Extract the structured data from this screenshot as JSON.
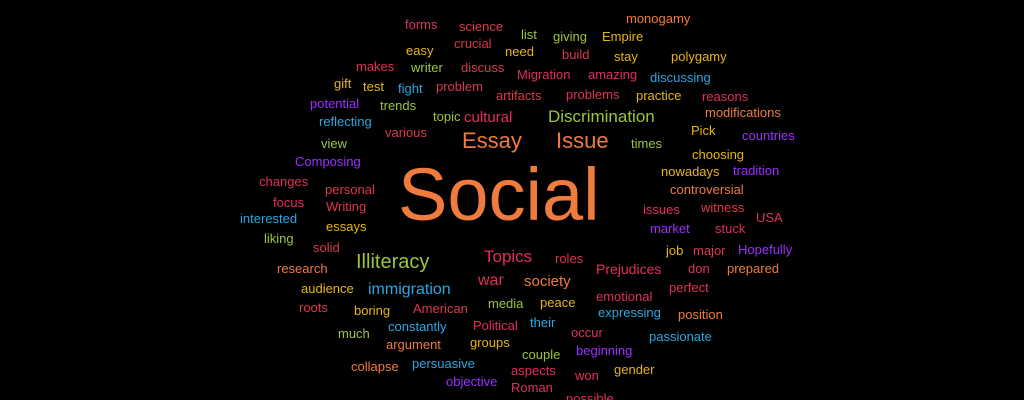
{
  "palette": {
    "orange": "#f07b3f",
    "red": "#d93a4a",
    "crimson": "#e0305a",
    "yellow_green": "#9bc53d",
    "purple": "#9b30ff",
    "blue": "#2aa7e0",
    "gold": "#e7b416"
  },
  "words": [
    {
      "text": "Social",
      "color": "#f07b3f",
      "size": 74
    },
    {
      "text": "Essay",
      "color": "#f07b3f",
      "size": 22
    },
    {
      "text": "Issue",
      "color": "#f07b3f",
      "size": 22
    },
    {
      "text": "Discrimination",
      "color": "#9bc53d",
      "size": 17
    },
    {
      "text": "cultural",
      "color": "#e0305a",
      "size": 15
    },
    {
      "text": "Illiteracy",
      "color": "#9bc53d",
      "size": 20
    },
    {
      "text": "Topics",
      "color": "#e0305a",
      "size": 17
    },
    {
      "text": "war",
      "color": "#e0305a",
      "size": 16
    },
    {
      "text": "society",
      "color": "#f07b3f",
      "size": 15
    },
    {
      "text": "immigration",
      "color": "#2aa7e0",
      "size": 16
    },
    {
      "text": "Prejudices",
      "color": "#e0305a",
      "size": 14
    },
    {
      "text": "forms",
      "color": "#e0305a",
      "size": 13
    },
    {
      "text": "science",
      "color": "#d93a4a",
      "size": 13
    },
    {
      "text": "crucial",
      "color": "#d93a4a",
      "size": 13
    },
    {
      "text": "list",
      "color": "#9bc53d",
      "size": 13
    },
    {
      "text": "giving",
      "color": "#9bc53d",
      "size": 13
    },
    {
      "text": "Empire",
      "color": "#e7b416",
      "size": 13
    },
    {
      "text": "monogamy",
      "color": "#f07b3f",
      "size": 13
    },
    {
      "text": "easy",
      "color": "#e7b416",
      "size": 13
    },
    {
      "text": "need",
      "color": "#e7b416",
      "size": 13
    },
    {
      "text": "build",
      "color": "#d93a4a",
      "size": 13
    },
    {
      "text": "stay",
      "color": "#e7b416",
      "size": 13
    },
    {
      "text": "polygamy",
      "color": "#e7b416",
      "size": 13
    },
    {
      "text": "makes",
      "color": "#e0305a",
      "size": 13
    },
    {
      "text": "writer",
      "color": "#9bc53d",
      "size": 13
    },
    {
      "text": "discuss",
      "color": "#d93a4a",
      "size": 13
    },
    {
      "text": "Migration",
      "color": "#e0305a",
      "size": 13
    },
    {
      "text": "amazing",
      "color": "#e0305a",
      "size": 13
    },
    {
      "text": "discussing",
      "color": "#2aa7e0",
      "size": 13
    },
    {
      "text": "gift",
      "color": "#e7b416",
      "size": 13
    },
    {
      "text": "test",
      "color": "#e7b416",
      "size": 13
    },
    {
      "text": "fight",
      "color": "#2aa7e0",
      "size": 13
    },
    {
      "text": "problem",
      "color": "#d93a4a",
      "size": 13
    },
    {
      "text": "artifacts",
      "color": "#d93a4a",
      "size": 13
    },
    {
      "text": "problems",
      "color": "#e0305a",
      "size": 13
    },
    {
      "text": "practice",
      "color": "#e7b416",
      "size": 13
    },
    {
      "text": "reasons",
      "color": "#e0305a",
      "size": 13
    },
    {
      "text": "potential",
      "color": "#9b30ff",
      "size": 13
    },
    {
      "text": "trends",
      "color": "#9bc53d",
      "size": 13
    },
    {
      "text": "modifications",
      "color": "#f07b3f",
      "size": 13
    },
    {
      "text": "reflecting",
      "color": "#2aa7e0",
      "size": 13
    },
    {
      "text": "topic",
      "color": "#9bc53d",
      "size": 13
    },
    {
      "text": "Pick",
      "color": "#e7b416",
      "size": 13
    },
    {
      "text": "countries",
      "color": "#9b30ff",
      "size": 13
    },
    {
      "text": "various",
      "color": "#d93a4a",
      "size": 13
    },
    {
      "text": "view",
      "color": "#9bc53d",
      "size": 13
    },
    {
      "text": "times",
      "color": "#9bc53d",
      "size": 13
    },
    {
      "text": "choosing",
      "color": "#e7b416",
      "size": 13
    },
    {
      "text": "Composing",
      "color": "#9b30ff",
      "size": 13
    },
    {
      "text": "nowadays",
      "color": "#e7b416",
      "size": 13
    },
    {
      "text": "tradition",
      "color": "#9b30ff",
      "size": 13
    },
    {
      "text": "changes",
      "color": "#e0305a",
      "size": 13
    },
    {
      "text": "personal",
      "color": "#d93a4a",
      "size": 13
    },
    {
      "text": "controversial",
      "color": "#f07b3f",
      "size": 13
    },
    {
      "text": "focus",
      "color": "#e0305a",
      "size": 13
    },
    {
      "text": "Writing",
      "color": "#d93a4a",
      "size": 13
    },
    {
      "text": "issues",
      "color": "#e0305a",
      "size": 13
    },
    {
      "text": "witness",
      "color": "#d93a4a",
      "size": 13
    },
    {
      "text": "interested",
      "color": "#2aa7e0",
      "size": 13
    },
    {
      "text": "USA",
      "color": "#e0305a",
      "size": 13
    },
    {
      "text": "essays",
      "color": "#e7b416",
      "size": 13
    },
    {
      "text": "market",
      "color": "#9b30ff",
      "size": 13
    },
    {
      "text": "stuck",
      "color": "#e0305a",
      "size": 13
    },
    {
      "text": "liking",
      "color": "#9bc53d",
      "size": 13
    },
    {
      "text": "solid",
      "color": "#d93a4a",
      "size": 13
    },
    {
      "text": "job",
      "color": "#e7b416",
      "size": 13
    },
    {
      "text": "major",
      "color": "#d93a4a",
      "size": 13
    },
    {
      "text": "Hopefully",
      "color": "#9b30ff",
      "size": 13
    },
    {
      "text": "roles",
      "color": "#d93a4a",
      "size": 13
    },
    {
      "text": "research",
      "color": "#f07b3f",
      "size": 13
    },
    {
      "text": "don",
      "color": "#e0305a",
      "size": 13
    },
    {
      "text": "prepared",
      "color": "#f07b3f",
      "size": 13
    },
    {
      "text": "audience",
      "color": "#e7b416",
      "size": 13
    },
    {
      "text": "perfect",
      "color": "#e0305a",
      "size": 13
    },
    {
      "text": "roots",
      "color": "#d93a4a",
      "size": 13
    },
    {
      "text": "American",
      "color": "#d93a4a",
      "size": 13
    },
    {
      "text": "media",
      "color": "#9bc53d",
      "size": 13
    },
    {
      "text": "peace",
      "color": "#e7b416",
      "size": 13
    },
    {
      "text": "emotional",
      "color": "#e0305a",
      "size": 13
    },
    {
      "text": "boring",
      "color": "#e7b416",
      "size": 13
    },
    {
      "text": "position",
      "color": "#f07b3f",
      "size": 13
    },
    {
      "text": "expressing",
      "color": "#2aa7e0",
      "size": 13
    },
    {
      "text": "their",
      "color": "#2aa7e0",
      "size": 13
    },
    {
      "text": "constantly",
      "color": "#2aa7e0",
      "size": 13
    },
    {
      "text": "Political",
      "color": "#e0305a",
      "size": 13
    },
    {
      "text": "much",
      "color": "#9bc53d",
      "size": 13
    },
    {
      "text": "occur",
      "color": "#e0305a",
      "size": 13
    },
    {
      "text": "passionate",
      "color": "#2aa7e0",
      "size": 13
    },
    {
      "text": "argument",
      "color": "#f07b3f",
      "size": 13
    },
    {
      "text": "groups",
      "color": "#e7b416",
      "size": 13
    },
    {
      "text": "beginning",
      "color": "#9b30ff",
      "size": 13
    },
    {
      "text": "couple",
      "color": "#9bc53d",
      "size": 13
    },
    {
      "text": "persuasive",
      "color": "#2aa7e0",
      "size": 13
    },
    {
      "text": "collapse",
      "color": "#f07b3f",
      "size": 13
    },
    {
      "text": "aspects",
      "color": "#e0305a",
      "size": 13
    },
    {
      "text": "gender",
      "color": "#e7b416",
      "size": 13
    },
    {
      "text": "objective",
      "color": "#9b30ff",
      "size": 13
    },
    {
      "text": "won",
      "color": "#e0305a",
      "size": 13
    },
    {
      "text": "Roman",
      "color": "#e0305a",
      "size": 13
    },
    {
      "text": "possible",
      "color": "#e0305a",
      "size": 13
    }
  ]
}
